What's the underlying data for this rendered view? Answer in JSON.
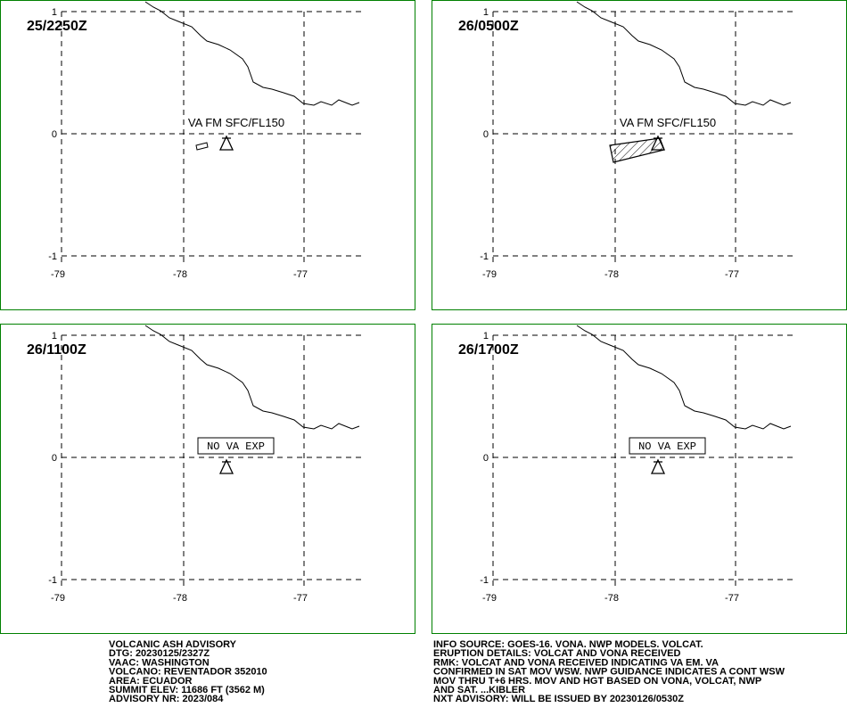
{
  "panels": [
    {
      "time": "25/2250Z",
      "annotation": "VA FM SFC/FL150"
    },
    {
      "time": "26/0500Z",
      "annotation": "VA FM SFC/FL150"
    },
    {
      "time": "26/1100Z",
      "annotation": "NO VA EXP"
    },
    {
      "time": "26/1700Z",
      "annotation": "NO VA EXP"
    }
  ],
  "grid": {
    "lat": [
      "1",
      "0",
      "-1"
    ],
    "lon": [
      "-79",
      "-78",
      "-77"
    ]
  },
  "footer": {
    "left": [
      "VOLCANIC ASH ADVISORY",
      "DTG: 20230125/2327Z",
      "VAAC: WASHINGTON",
      "VOLCANO: REVENTADOR 352010",
      "AREA: ECUADOR",
      "SUMMIT ELEV: 11686 FT (3562 M)",
      "ADVISORY NR: 2023/084"
    ],
    "right": [
      "INFO SOURCE: GOES-16. VONA. NWP MODELS. VOLCAT.",
      "ERUPTION DETAILS: VOLCAT AND VONA RECEIVED",
      "RMK: VOLCAT AND VONA RECEIVED INDICATING VA EM. VA",
      "CONFIRMED IN SAT MOV WSW. NWP GUIDANCE INDICATES A CONT WSW",
      "MOV THRU T+6 HRS. MOV AND HGT BASED ON VONA, VOLCAT, NWP",
      "AND SAT. ...KIBLER",
      "NXT ADVISORY: WILL BE ISSUED BY 20230126/0530Z"
    ]
  }
}
